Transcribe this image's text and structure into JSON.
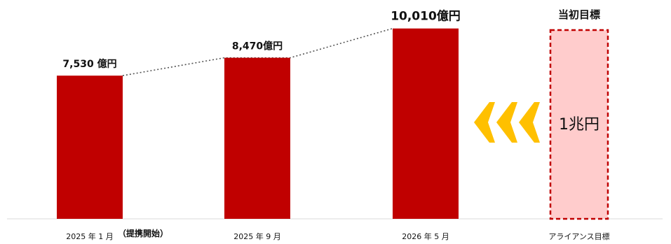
{
  "chart_data": {
    "type": "bar",
    "categories": [
      "2025 年 1 月",
      "2025 年 9 月",
      "2026 年 5 月"
    ],
    "values": [
      7530,
      8470,
      10010
    ],
    "value_labels": [
      "7,530 億円",
      "8,470億円",
      "10,010億円"
    ],
    "unit": "億円",
    "ylim": [
      0,
      12000
    ],
    "bar_color": "#C00000",
    "connector": "dotted",
    "grid": false,
    "annotation": "（提携開始）",
    "annotation_color": "#C00000",
    "target": {
      "category": "アライアンス目標",
      "heading": "当初目標",
      "value": 10000,
      "label": "1兆円",
      "fill_color": "#FFCCCC",
      "border_color": "#C00000",
      "arrow_color": "#FFC000"
    }
  }
}
